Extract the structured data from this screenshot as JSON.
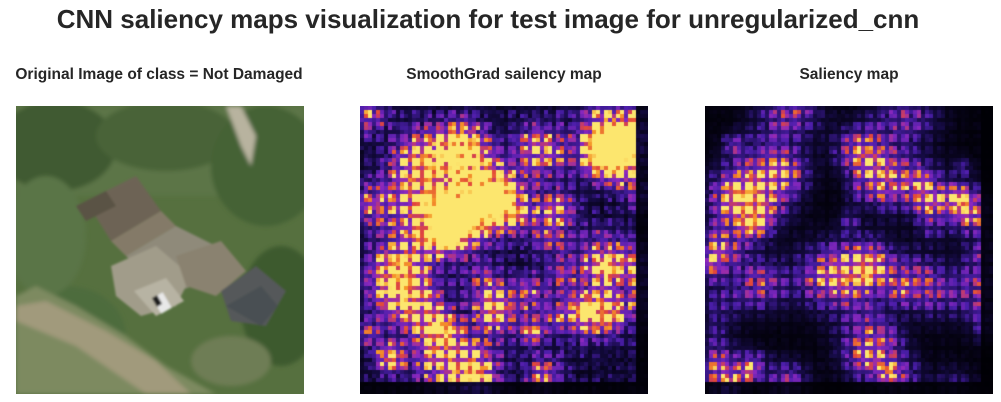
{
  "figure": {
    "title": "CNN saliency maps visualization for test image for unregularized_cnn"
  },
  "panels": [
    {
      "title": "Original Image of class = Not Damaged",
      "kind": "aerial-photo"
    },
    {
      "title": "SmoothGrad sailency map",
      "kind": "heatmap",
      "colormap": "inferno-like"
    },
    {
      "title": "Saliency map",
      "kind": "heatmap",
      "colormap": "inferno-like"
    }
  ],
  "colors": {
    "heat_low": "#000004",
    "heat_mid_low": "#2a0f6e",
    "heat_mid": "#6a2bd6",
    "heat_high": "#e0442c",
    "heat_peak": "#fcd34a",
    "vegetation": "#4d6a3e",
    "roof": "#8a8474"
  }
}
